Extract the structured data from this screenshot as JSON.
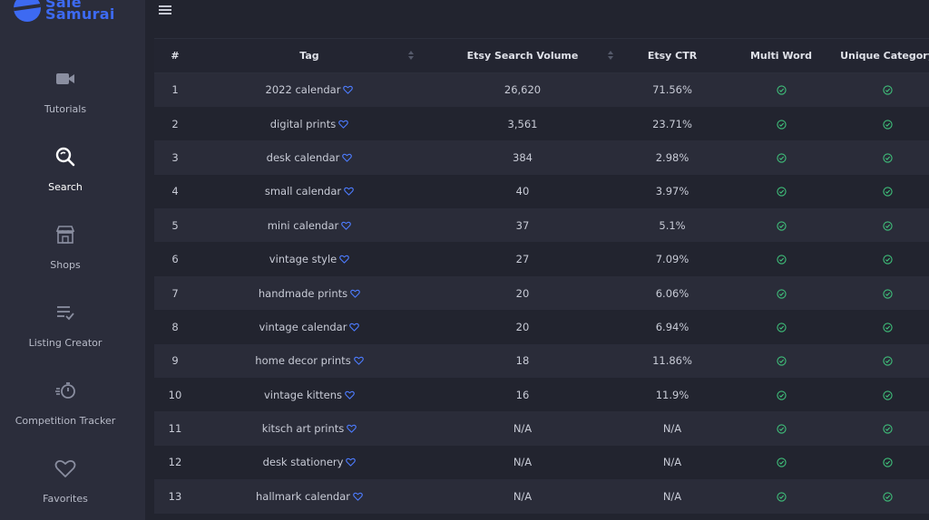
{
  "brand": {
    "line1": "Sale",
    "line2": "Samurai",
    "color": "#3d6af2"
  },
  "sidebar": {
    "items": [
      {
        "label": "Tutorials",
        "icon": "video-camera-icon",
        "active": false
      },
      {
        "label": "Search",
        "icon": "search-icon",
        "active": true
      },
      {
        "label": "Shops",
        "icon": "shop-icon",
        "active": false
      },
      {
        "label": "Listing Creator",
        "icon": "list-check-icon",
        "active": false
      },
      {
        "label": "Competition Tracker",
        "icon": "stopwatch-icon",
        "active": false
      },
      {
        "label": "Favorites",
        "icon": "heart-icon",
        "active": false
      }
    ]
  },
  "table": {
    "columns": [
      "#",
      "Tag",
      "Etsy Search Volume",
      "Etsy CTR",
      "Multi Word",
      "Unique Category"
    ],
    "rows": [
      {
        "num": "1",
        "tag": "2022 calendar",
        "volume": "26,620",
        "ctr": "71.56%",
        "multi": true,
        "unique": true
      },
      {
        "num": "2",
        "tag": "digital prints",
        "volume": "3,561",
        "ctr": "23.71%",
        "multi": true,
        "unique": true
      },
      {
        "num": "3",
        "tag": "desk calendar",
        "volume": "384",
        "ctr": "2.98%",
        "multi": true,
        "unique": true
      },
      {
        "num": "4",
        "tag": "small calendar",
        "volume": "40",
        "ctr": "3.97%",
        "multi": true,
        "unique": true
      },
      {
        "num": "5",
        "tag": "mini calendar",
        "volume": "37",
        "ctr": "5.1%",
        "multi": true,
        "unique": true
      },
      {
        "num": "6",
        "tag": "vintage style",
        "volume": "27",
        "ctr": "7.09%",
        "multi": true,
        "unique": true
      },
      {
        "num": "7",
        "tag": "handmade prints",
        "volume": "20",
        "ctr": "6.06%",
        "multi": true,
        "unique": true
      },
      {
        "num": "8",
        "tag": "vintage calendar",
        "volume": "20",
        "ctr": "6.94%",
        "multi": true,
        "unique": true
      },
      {
        "num": "9",
        "tag": "home decor prints",
        "volume": "18",
        "ctr": "11.86%",
        "multi": true,
        "unique": true
      },
      {
        "num": "10",
        "tag": "vintage kittens",
        "volume": "16",
        "ctr": "11.9%",
        "multi": true,
        "unique": true
      },
      {
        "num": "11",
        "tag": "kitsch art prints",
        "volume": "N/A",
        "ctr": "N/A",
        "multi": true,
        "unique": true
      },
      {
        "num": "12",
        "tag": "desk stationery",
        "volume": "N/A",
        "ctr": "N/A",
        "multi": true,
        "unique": true
      },
      {
        "num": "13",
        "tag": "hallmark calendar",
        "volume": "N/A",
        "ctr": "N/A",
        "multi": true,
        "unique": true
      }
    ]
  },
  "colors": {
    "check": "#3fbf7a",
    "heart": "#4d7cff",
    "accent": "#3d6af2"
  }
}
